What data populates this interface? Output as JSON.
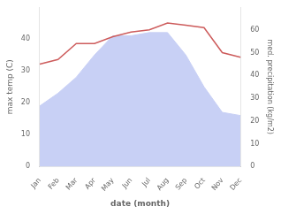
{
  "chart_data": {
    "type": "line",
    "categories": [
      "Jan",
      "Feb",
      "Mar",
      "Apr",
      "May",
      "Jun",
      "Jul",
      "Aug",
      "Sep",
      "Oct",
      "Nov",
      "Dec"
    ],
    "series": [
      {
        "type": "area",
        "color": "#c8d0f5",
        "values": [
          19,
          23,
          28,
          35,
          41,
          41,
          42,
          42,
          35,
          25,
          17,
          16
        ]
      },
      {
        "type": "line",
        "color": "#cd5c5c",
        "axis": "y2",
        "values": [
          45,
          47,
          54,
          54,
          57,
          59,
          60,
          63,
          62,
          61,
          50,
          48
        ]
      }
    ],
    "xlabel": "date (month)",
    "ylabel": "max temp (C)",
    "y2label": "med. precipitation (kg/m2)",
    "ylim": [
      0,
      50
    ],
    "yticks": [
      0,
      10,
      20,
      30,
      40
    ],
    "y2lim": [
      0,
      70
    ],
    "y2ticks": [
      0,
      10,
      20,
      30,
      40,
      50,
      60
    ],
    "grid": false
  }
}
